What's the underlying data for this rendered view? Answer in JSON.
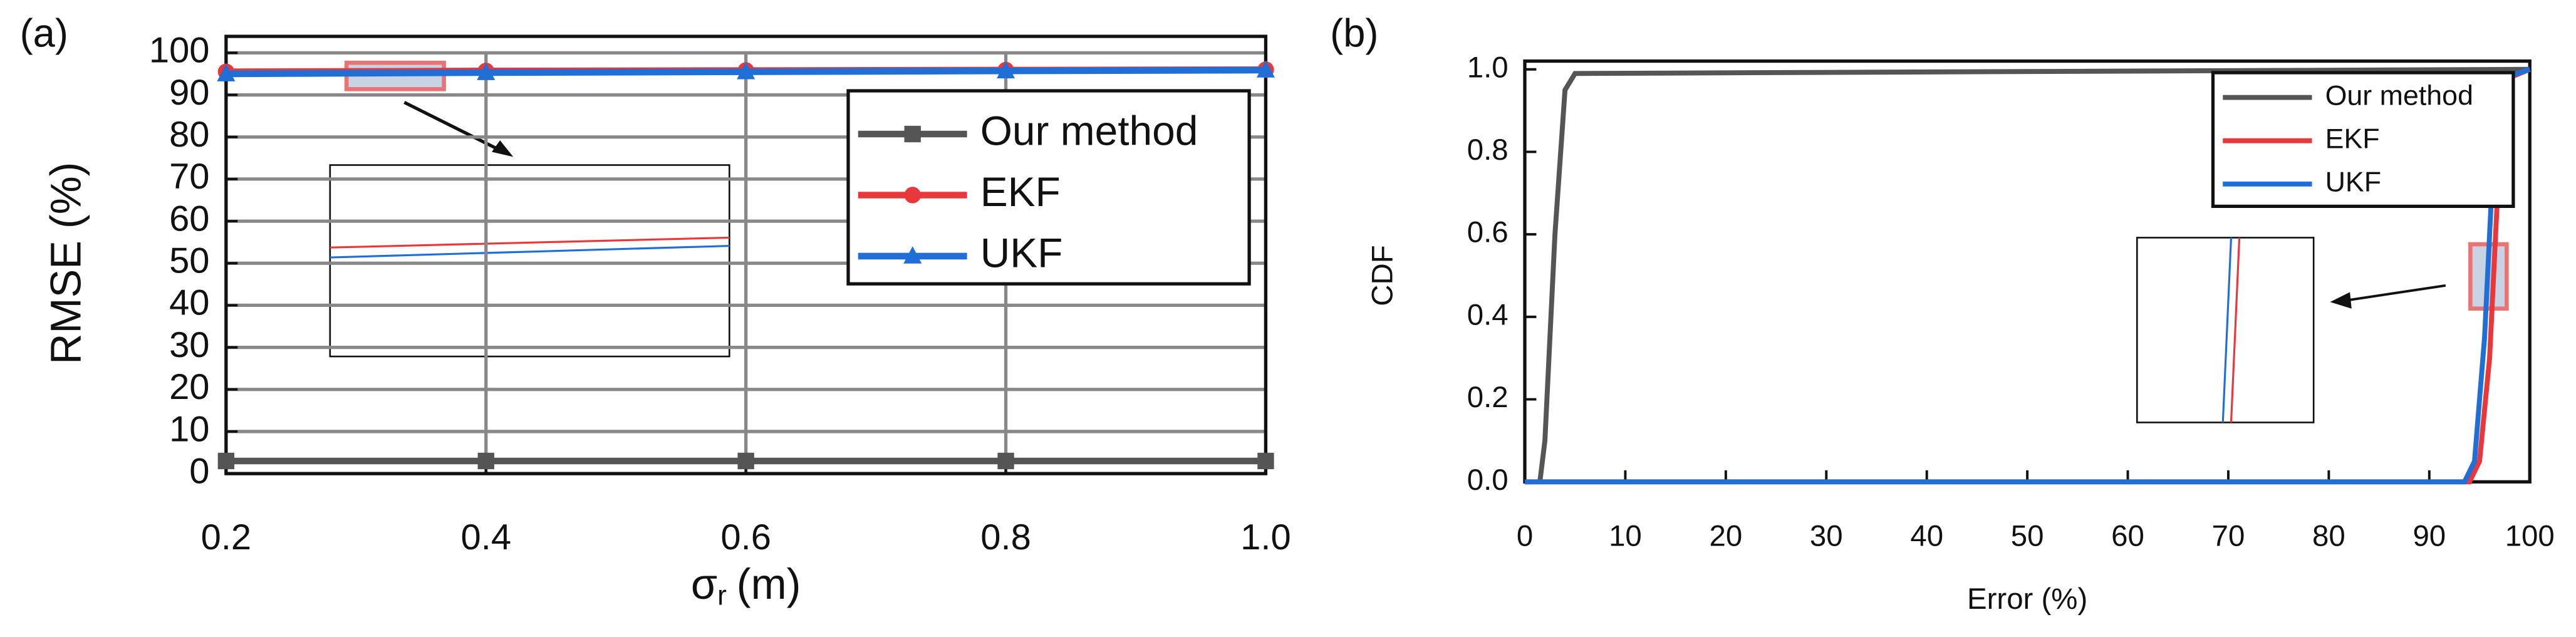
{
  "chart_data": [
    {
      "type": "line",
      "panel": "(a)",
      "y_label": "RMSE (%)",
      "x_label": "σ",
      "x_label_sub": "r",
      "x_label_unit": "(m)",
      "x": [
        0.2,
        0.4,
        0.6,
        0.8,
        1.0
      ],
      "series": [
        {
          "name": "Our method",
          "color": "#555555",
          "marker": "square",
          "values": [
            3,
            3,
            3,
            3,
            3
          ]
        },
        {
          "name": "EKF",
          "color": "#e8383b",
          "marker": "circle",
          "values": [
            95.5,
            95.7,
            95.8,
            95.9,
            96
          ]
        },
        {
          "name": "UKF",
          "color": "#1f6fd6",
          "marker": "triangle",
          "values": [
            95,
            95.3,
            95.5,
            95.7,
            95.9
          ]
        }
      ],
      "xlim": [
        0.2,
        1.0
      ],
      "xticks": [
        0.2,
        0.4,
        0.6,
        0.8,
        {
          "value": 1,
          "label": "1.0"
        }
      ],
      "ylim": [
        0,
        100
      ],
      "yticks": [
        0,
        10,
        20,
        30,
        40,
        50,
        60,
        70,
        80,
        90,
        100
      ],
      "grid": true,
      "legend": "upper right"
    },
    {
      "type": "line",
      "panel": "(b)",
      "y_label": "CDF",
      "x_label": "Error (%)",
      "series": [
        {
          "name": "Our method",
          "color": "#555555",
          "x": [
            1.5,
            2,
            3,
            4,
            5,
            100
          ],
          "values": [
            0,
            0.1,
            0.6,
            0.95,
            0.99,
            1
          ]
        },
        {
          "name": "EKF",
          "color": "#e8383b",
          "x": [
            0,
            94,
            95,
            96,
            97,
            98,
            100
          ],
          "values": [
            0,
            0,
            0.05,
            0.3,
            0.8,
            0.98,
            1
          ]
        },
        {
          "name": "UKF",
          "color": "#1f6fd6",
          "x": [
            0,
            93.5,
            94.5,
            95.5,
            96.5,
            97.5,
            100
          ],
          "values": [
            0,
            0,
            0.05,
            0.35,
            0.85,
            0.98,
            1
          ]
        }
      ],
      "xlim": [
        0,
        100
      ],
      "xticks": [
        0,
        10,
        20,
        30,
        40,
        50,
        60,
        70,
        80,
        90,
        100
      ],
      "ylim": [
        0,
        1
      ],
      "yticks": [
        {
          "value": 0,
          "label": "0.0"
        },
        0.2,
        0.4,
        0.6,
        0.8,
        {
          "value": 1,
          "label": "1.0"
        }
      ],
      "grid": false,
      "legend": "upper right"
    }
  ]
}
